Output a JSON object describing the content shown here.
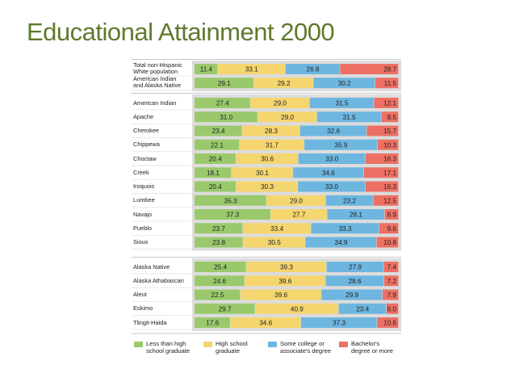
{
  "title": "Educational Attainment 2000",
  "chart_data": {
    "type": "bar",
    "orientation": "horizontal",
    "stacked": true,
    "normalized": true,
    "colors": [
      "#9ac96b",
      "#f5d56e",
      "#6db6e0",
      "#ec7063"
    ],
    "series": [
      {
        "name": "Less than high school graduate",
        "label_lines": [
          "Less than high",
          "school graduate"
        ]
      },
      {
        "name": "High school graduate",
        "label_lines": [
          "High school",
          "graduate"
        ]
      },
      {
        "name": "Some college or associate's degree",
        "label_lines": [
          "Some college or",
          "associate's degree"
        ]
      },
      {
        "name": "Bachelor's degree or more",
        "label_lines": [
          "Bachelor's",
          "degree or more"
        ]
      }
    ],
    "groups": [
      {
        "rows": [
          {
            "label_lines": [
              "Total non-Hispanic",
              "White population"
            ],
            "values": [
              11.4,
              33.1,
              26.8,
              28.7
            ],
            "labels": [
              "11.4",
              "33.1",
              "26.8",
              "28.7"
            ]
          },
          {
            "label_lines": [
              "American Indian",
              "and Alaska Native"
            ],
            "values": [
              29.1,
              29.2,
              30.2,
              11.5
            ],
            "labels": [
              "29.1",
              "29.2",
              "30.2",
              "11.5"
            ]
          }
        ]
      },
      {
        "rows": [
          {
            "label_lines": [
              "American Indian"
            ],
            "values": [
              27.4,
              29.0,
              31.5,
              12.1
            ],
            "labels": [
              "27.4",
              "29.0",
              "31.5",
              "12.1"
            ]
          },
          {
            "label_lines": [
              "Apache"
            ],
            "values": [
              31.0,
              29.0,
              31.5,
              8.5
            ],
            "labels": [
              "31.0",
              "29.0",
              "31.5",
              "8.5"
            ]
          },
          {
            "label_lines": [
              "Cherokee"
            ],
            "values": [
              23.4,
              28.3,
              32.6,
              15.7
            ],
            "labels": [
              "23.4",
              "28.3",
              "32.6",
              "15.7"
            ]
          },
          {
            "label_lines": [
              "Chippewa"
            ],
            "values": [
              22.1,
              31.7,
              35.9,
              10.3
            ],
            "labels": [
              "22.1",
              "31.7",
              "35.9",
              "10.3"
            ]
          },
          {
            "label_lines": [
              "Choctaw"
            ],
            "values": [
              20.4,
              30.6,
              33.0,
              16.3
            ],
            "labels": [
              "20.4",
              "30.6",
              "33.0",
              "16.3"
            ]
          },
          {
            "label_lines": [
              "Creek"
            ],
            "values": [
              18.1,
              30.1,
              34.6,
              17.1
            ],
            "labels": [
              "18.1",
              "30.1",
              "34.6",
              "17.1"
            ]
          },
          {
            "label_lines": [
              "Iroquois"
            ],
            "values": [
              20.4,
              30.3,
              33.0,
              16.3
            ],
            "labels": [
              "20.4",
              "30.3",
              "33.0",
              "16.3"
            ]
          },
          {
            "label_lines": [
              "Lumbee"
            ],
            "values": [
              35.3,
              29.0,
              23.2,
              12.5
            ],
            "labels": [
              "35.3",
              "29.0",
              "23.2",
              "12.5"
            ]
          },
          {
            "label_lines": [
              "Navajo"
            ],
            "values": [
              37.3,
              27.7,
              28.1,
              6.9
            ],
            "labels": [
              "37.3",
              "27.7",
              "28.1",
              "6.9"
            ]
          },
          {
            "label_lines": [
              "Pueblo"
            ],
            "values": [
              23.7,
              33.4,
              33.3,
              9.6
            ],
            "labels": [
              "23.7",
              "33.4",
              "33.3",
              "9.6"
            ]
          },
          {
            "label_lines": [
              "Sioux"
            ],
            "values": [
              23.8,
              30.5,
              34.9,
              10.8
            ],
            "labels": [
              "23.8",
              "30.5",
              "34.9",
              "10.8"
            ]
          }
        ]
      },
      {
        "rows": [
          {
            "label_lines": [
              "Alaska Native"
            ],
            "values": [
              25.4,
              39.3,
              27.9,
              7.4
            ],
            "labels": [
              "25.4",
              "39.3",
              "27.9",
              "7.4"
            ]
          },
          {
            "label_lines": [
              "Alaska Athabascan"
            ],
            "values": [
              24.6,
              39.6,
              28.6,
              7.2
            ],
            "labels": [
              "24.6",
              "39.6",
              "28.6",
              "7.2"
            ]
          },
          {
            "label_lines": [
              "Aleut"
            ],
            "values": [
              22.5,
              39.6,
              29.9,
              7.9
            ],
            "labels": [
              "22.5",
              "39.6",
              "29.9",
              "7.9"
            ]
          },
          {
            "label_lines": [
              "Eskimo"
            ],
            "values": [
              29.7,
              40.9,
              23.4,
              6.0
            ],
            "labels": [
              "29.7",
              "40.9",
              "23.4",
              "6.0"
            ]
          },
          {
            "label_lines": [
              "Tlingit-Haida"
            ],
            "values": [
              17.6,
              34.6,
              37.3,
              10.6
            ],
            "labels": [
              "17.6",
              "34.6",
              "37.3",
              "10.6"
            ]
          }
        ]
      }
    ]
  }
}
